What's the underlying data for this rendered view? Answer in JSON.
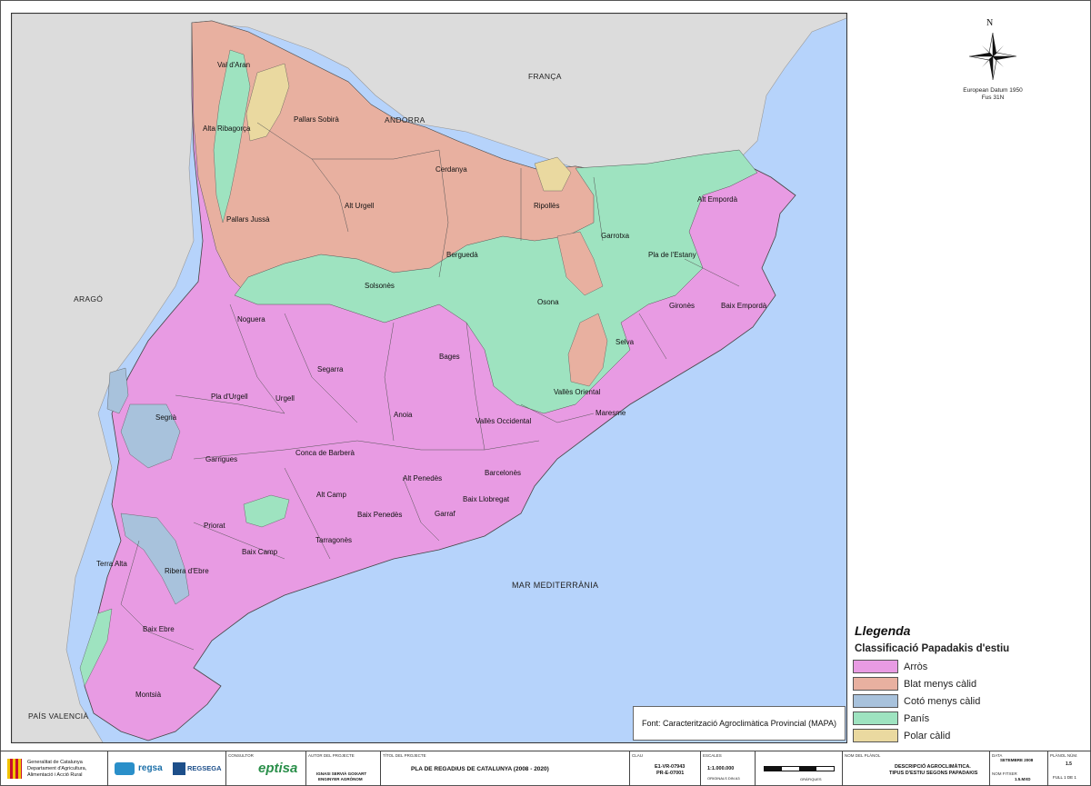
{
  "map": {
    "countries": {
      "franca": "FRANÇA",
      "andorra": "ANDORRA",
      "arago": "ARAGÓ",
      "pais_valencia": "PAÍS VALENCIÀ"
    },
    "sea": "MAR MEDITERRÀNIA",
    "regions": [
      {
        "name": "Val d'Aran"
      },
      {
        "name": "Alta Ribagorça"
      },
      {
        "name": "Pallars Sobirà"
      },
      {
        "name": "Cerdanya"
      },
      {
        "name": "Ripollès"
      },
      {
        "name": "Alt Urgell"
      },
      {
        "name": "Pallars Jussà"
      },
      {
        "name": "Berguedà"
      },
      {
        "name": "Garrotxa"
      },
      {
        "name": "Alt Empordà"
      },
      {
        "name": "Pla de l'Estany"
      },
      {
        "name": "Solsonès"
      },
      {
        "name": "Osona"
      },
      {
        "name": "Gironès"
      },
      {
        "name": "Baix Empordà"
      },
      {
        "name": "Noguera"
      },
      {
        "name": "Selva"
      },
      {
        "name": "Bages"
      },
      {
        "name": "Segarra"
      },
      {
        "name": "Pla d'Urgell"
      },
      {
        "name": "Urgell"
      },
      {
        "name": "Vallès Oriental"
      },
      {
        "name": "Segrià"
      },
      {
        "name": "Anoia"
      },
      {
        "name": "Vallès Occidental"
      },
      {
        "name": "Maresme"
      },
      {
        "name": "Garrigues"
      },
      {
        "name": "Conca de Barberà"
      },
      {
        "name": "Barcelonès"
      },
      {
        "name": "Alt Penedès"
      },
      {
        "name": "Alt Camp"
      },
      {
        "name": "Baix Llobregat"
      },
      {
        "name": "Garraf"
      },
      {
        "name": "Baix Penedès"
      },
      {
        "name": "Priorat"
      },
      {
        "name": "Baix Camp"
      },
      {
        "name": "Tarragonès"
      },
      {
        "name": "Terra Alta"
      },
      {
        "name": "Ribera d'Ebre"
      },
      {
        "name": "Baix Ebre"
      },
      {
        "name": "Montsià"
      }
    ],
    "source": "Font: Caracterització Agroclimàtica Provincial (MAPA)"
  },
  "north_arrow": {
    "letter": "N",
    "datum_line1": "European Datum 1950",
    "datum_line2": "Fus 31N"
  },
  "legend": {
    "title": "Llegenda",
    "subtitle": "Classificació Papadakis d'estiu",
    "items": [
      {
        "label": "Arròs",
        "color": "#e89be3"
      },
      {
        "label": "Blat menys càlid",
        "color": "#e8b0a0"
      },
      {
        "label": "Cotó menys càlid",
        "color": "#a8c2dc"
      },
      {
        "label": "Panís",
        "color": "#9ee3c0"
      },
      {
        "label": "Polar càlid",
        "color": "#ead9a0"
      }
    ]
  },
  "colors": {
    "sea": "#b6d3fb",
    "land_outside": "#dcdcdc"
  },
  "titleblock": {
    "org1": "Generalitat de Catalunya",
    "org2": "Departament d'Agricultura,",
    "org3": "Alimentació i Acció Rural",
    "regsa": "regsa",
    "regsega": "REGSEGA",
    "consultor_head": "CONSULTOR",
    "eptisa": "eptisa",
    "autor_head": "AUTOR DEL PROJECTE",
    "autor1": "IGNASI SERVIÀ GOIXART",
    "autor2": "ENGINYER AGRÒNOM",
    "titol_head": "TÍTOL DEL PROJECTE",
    "titol": "PLA DE REGADIUS DE CATALUNYA (2008 - 2020)",
    "clau_head": "CLAU",
    "clau1": "E1-VR-07943",
    "clau2": "PR-E-07001",
    "escales_head": "ESCALES",
    "escala": "1:1.000.000",
    "originals": "ORIGINALS DIN A3",
    "graphic_head": "GRÀFIQUES",
    "nom_head": "NOM DEL PLÀNOL",
    "nom1": "DESCRIPCIÓ AGROCLIMÀTICA.",
    "nom2": "TIPUS D'ESTIU SEGONS PAPADAKIS",
    "data_head": "DATA",
    "data": "SETEMBRE 2008",
    "fitxer_head": "NOM FITXER",
    "fitxer": "1.5.MXD",
    "planol_head": "PLÀNOL NÚM.",
    "planol": "1.5",
    "full": "FULL 1 DE 1"
  }
}
